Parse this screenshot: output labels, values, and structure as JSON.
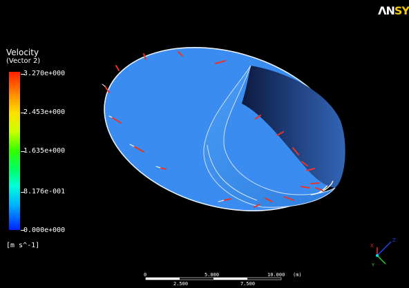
{
  "logo": {
    "text_white": "ΛN",
    "text_gold": "SY"
  },
  "legend": {
    "title": "Velocity",
    "subtitle": "(Vector 2)",
    "ticks": [
      "3.270e+000",
      "2.453e+000",
      "1.635e+000",
      "8.176e-001",
      "0.000e+000"
    ],
    "units": "[m s^-1]",
    "colors": {
      "max": "#ff1e00",
      "mid": "#32ff00",
      "min": "#0022ff"
    }
  },
  "scale_bar": {
    "top_labels": [
      "0",
      "5.000",
      "10.000",
      "(m)"
    ],
    "bottom_labels": [
      "2.500",
      "7.500"
    ]
  },
  "triad": {
    "x_axis": "X",
    "y_axis": "Y",
    "z_axis": "Z"
  },
  "model": {
    "surface_color": "#3a8cf0",
    "vector_color": "#e8352a"
  }
}
